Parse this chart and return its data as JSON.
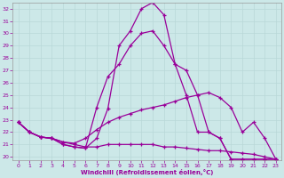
{
  "xlabel": "Windchill (Refroidissement éolien,°C)",
  "background_color": "#cce8e8",
  "line_color": "#990099",
  "grid_color": "#b8d8d8",
  "xlim": [
    -0.5,
    23.5
  ],
  "ylim": [
    19.7,
    32.5
  ],
  "xticks": [
    0,
    1,
    2,
    3,
    4,
    5,
    6,
    7,
    8,
    9,
    10,
    11,
    12,
    13,
    14,
    15,
    16,
    17,
    18,
    19,
    20,
    21,
    22,
    23
  ],
  "yticks": [
    20,
    21,
    22,
    23,
    24,
    25,
    26,
    27,
    28,
    29,
    30,
    31,
    32
  ],
  "lines": [
    {
      "x": [
        0,
        1,
        2,
        3,
        4,
        5,
        6,
        7,
        8,
        9,
        10,
        11,
        12,
        13,
        14,
        15,
        16,
        17,
        18,
        19,
        20,
        21,
        22,
        23
      ],
      "y": [
        22.8,
        22.0,
        21.6,
        21.5,
        21.0,
        20.8,
        20.7,
        21.5,
        23.9,
        29.0,
        30.2,
        32.0,
        32.5,
        31.5,
        27.5,
        27.0,
        25.0,
        22.0,
        21.5,
        19.8,
        19.8,
        19.8,
        19.8,
        19.8
      ]
    },
    {
      "x": [
        0,
        1,
        2,
        3,
        4,
        5,
        6,
        7,
        8,
        9,
        10,
        11,
        12,
        13,
        14,
        15,
        16,
        17,
        18,
        19,
        20,
        21,
        22,
        23
      ],
      "y": [
        22.8,
        22.0,
        21.6,
        21.5,
        21.0,
        20.8,
        20.7,
        24.0,
        26.5,
        27.5,
        29.0,
        30.0,
        30.2,
        29.0,
        27.5,
        25.0,
        22.0,
        22.0,
        21.5,
        19.8,
        19.8,
        19.8,
        19.8,
        19.8
      ]
    },
    {
      "x": [
        0,
        1,
        2,
        3,
        4,
        5,
        6,
        7,
        8,
        9,
        10,
        11,
        12,
        13,
        14,
        15,
        16,
        17,
        18,
        19,
        20,
        21,
        22,
        23
      ],
      "y": [
        22.8,
        22.0,
        21.6,
        21.5,
        21.2,
        21.1,
        21.5,
        22.2,
        22.8,
        23.2,
        23.5,
        23.8,
        24.0,
        24.2,
        24.5,
        24.8,
        25.0,
        25.2,
        24.8,
        24.0,
        22.0,
        22.8,
        21.5,
        19.8
      ]
    },
    {
      "x": [
        0,
        1,
        2,
        3,
        4,
        5,
        6,
        7,
        8,
        9,
        10,
        11,
        12,
        13,
        14,
        15,
        16,
        17,
        18,
        19,
        20,
        21,
        22,
        23
      ],
      "y": [
        22.8,
        22.0,
        21.6,
        21.5,
        21.2,
        21.0,
        20.8,
        20.8,
        21.0,
        21.0,
        21.0,
        21.0,
        21.0,
        20.8,
        20.8,
        20.7,
        20.6,
        20.5,
        20.5,
        20.4,
        20.3,
        20.2,
        20.0,
        19.8
      ]
    }
  ]
}
